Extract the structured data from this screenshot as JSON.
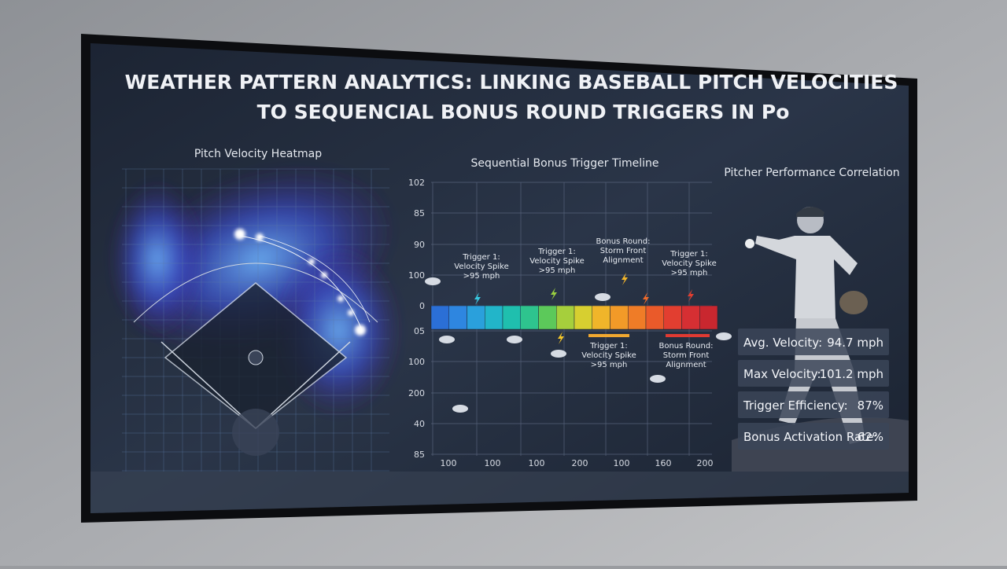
{
  "header": {
    "title_lines": [
      "WEATHER PATTERN ANALYTICS: LINKING BASEBALL PITCH VELOCITIES",
      "TO SEQUENCIAL BONUS ROUND TRIGGERS IN Po"
    ]
  },
  "heatmap": {
    "title": "Pitch Velocity Heatmap"
  },
  "timeline": {
    "title": "Sequential Bonus Trigger Timeline",
    "y_labels": [
      "102",
      "85",
      "90",
      "100",
      "0",
      "05",
      "100",
      "200",
      "40",
      "85"
    ],
    "x_labels": [
      "100",
      "100",
      "100",
      "200",
      "100",
      "160",
      "200"
    ],
    "annotations": [
      {
        "lines": [
          "Trigger 1:",
          "Velocity Spike",
          ">95 mph"
        ]
      },
      {
        "lines": [
          "Trigger 1:",
          "Velocity Spike",
          ">95 mph"
        ]
      },
      {
        "lines": [
          "Bonus Round:",
          "Storm Front",
          "Alignment"
        ]
      },
      {
        "lines": [
          "Trigger 1:",
          "Velocity Spike",
          ">95 mph"
        ]
      },
      {
        "lines": [
          "Trigger 1:",
          "Velocity Spike",
          ">95 mph"
        ]
      },
      {
        "lines": [
          "Bonus Round:",
          "Storm Front",
          "Alignment"
        ]
      }
    ]
  },
  "performance": {
    "title": "Pitcher Performance Correlation",
    "stats": [
      {
        "label": "Avg. Velocity:",
        "value": "94.7 mph"
      },
      {
        "label": "Max Velocity:",
        "value": "101.2 mph"
      },
      {
        "label": "Trigger Efficiency:",
        "value": "87%"
      },
      {
        "label": "Bonus Activation Rate:",
        "value": "62%"
      }
    ]
  }
}
